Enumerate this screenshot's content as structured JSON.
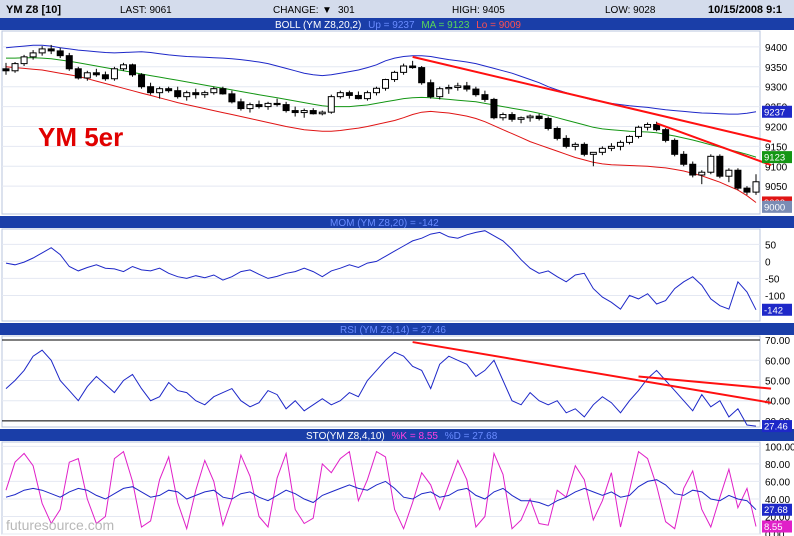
{
  "header": {
    "symbol": "YM Z8 [10]",
    "last_label": "LAST: 9061",
    "change_label": "CHANGE:",
    "change_arrow": "▼",
    "change_value": "301",
    "high_label": "HIGH: 9405",
    "low_label": "LOW: 9028",
    "datetime": "10/15/2008 9:1"
  },
  "annotation": {
    "text": "YM 5er"
  },
  "watermark": "futuresource.com",
  "colors": {
    "header_bg": "#d4dcec",
    "panel_bar": "#1a3ea8",
    "grid": "#b8c4dc",
    "price_line": "#000000",
    "boll_upper": "#1e28c8",
    "boll_mid": "#149614",
    "boll_lower": "#e01414",
    "osc_line": "#1e28c8",
    "stoch_k": "#e020c8",
    "trendline": "#ff1010",
    "badge_blue": "#1e28c8",
    "badge_green": "#149614",
    "badge_red": "#e01414",
    "badge_grey": "#7a8cb4"
  },
  "chart_data": [
    {
      "type": "candlestick",
      "title": "BOLL (YM Z8,20,2)",
      "legend": [
        {
          "name": "Up = 9237",
          "color": "#1e28c8"
        },
        {
          "name": "MA = 9123",
          "color": "#149614"
        },
        {
          "name": "Lo = 9009",
          "color": "#e01414"
        }
      ],
      "ylim": [
        8980,
        9440
      ],
      "yticks": [
        9400,
        9350,
        9300,
        9250,
        9200,
        9150,
        9100,
        9050
      ],
      "badges": [
        {
          "label": "9237",
          "value": 9237,
          "color": "#1e28c8"
        },
        {
          "label": "9123",
          "value": 9123,
          "color": "#149614"
        },
        {
          "label": "9009",
          "value": 9009,
          "color": "#e01414"
        },
        {
          "label": "9000",
          "value": 8998,
          "color": "#7a8cb4"
        }
      ],
      "candles": [
        [
          9345,
          9360,
          9330,
          9340
        ],
        [
          9340,
          9362,
          9335,
          9358
        ],
        [
          9358,
          9380,
          9352,
          9375
        ],
        [
          9375,
          9392,
          9368,
          9385
        ],
        [
          9385,
          9402,
          9378,
          9395
        ],
        [
          9395,
          9405,
          9382,
          9390
        ],
        [
          9390,
          9398,
          9372,
          9378
        ],
        [
          9378,
          9385,
          9340,
          9345
        ],
        [
          9345,
          9350,
          9318,
          9322
        ],
        [
          9322,
          9340,
          9315,
          9335
        ],
        [
          9335,
          9345,
          9325,
          9330
        ],
        [
          9330,
          9338,
          9315,
          9320
        ],
        [
          9320,
          9350,
          9315,
          9345
        ],
        [
          9345,
          9360,
          9340,
          9355
        ],
        [
          9355,
          9358,
          9325,
          9330
        ],
        [
          9330,
          9334,
          9295,
          9300
        ],
        [
          9300,
          9310,
          9280,
          9285
        ],
        [
          9285,
          9300,
          9270,
          9295
        ],
        [
          9295,
          9300,
          9285,
          9290
        ],
        [
          9290,
          9300,
          9270,
          9275
        ],
        [
          9275,
          9290,
          9265,
          9285
        ],
        [
          9285,
          9295,
          9270,
          9280
        ],
        [
          9280,
          9290,
          9272,
          9285
        ],
        [
          9285,
          9300,
          9280,
          9295
        ],
        [
          9295,
          9300,
          9280,
          9282
        ],
        [
          9282,
          9290,
          9258,
          9262
        ],
        [
          9262,
          9270,
          9240,
          9245
        ],
        [
          9245,
          9260,
          9235,
          9255
        ],
        [
          9255,
          9265,
          9245,
          9250
        ],
        [
          9250,
          9262,
          9242,
          9258
        ],
        [
          9258,
          9270,
          9250,
          9255
        ],
        [
          9255,
          9262,
          9235,
          9240
        ],
        [
          9240,
          9250,
          9225,
          9235
        ],
        [
          9235,
          9245,
          9222,
          9240
        ],
        [
          9240,
          9246,
          9230,
          9232
        ],
        [
          9232,
          9240,
          9228,
          9236
        ],
        [
          9236,
          9280,
          9232,
          9275
        ],
        [
          9275,
          9290,
          9270,
          9285
        ],
        [
          9285,
          9290,
          9270,
          9278
        ],
        [
          9278,
          9288,
          9268,
          9270
        ],
        [
          9270,
          9290,
          9265,
          9285
        ],
        [
          9285,
          9300,
          9278,
          9296
        ],
        [
          9296,
          9320,
          9290,
          9318
        ],
        [
          9318,
          9340,
          9312,
          9336
        ],
        [
          9336,
          9358,
          9330,
          9352
        ],
        [
          9352,
          9365,
          9345,
          9348
        ],
        [
          9348,
          9352,
          9305,
          9310
        ],
        [
          9310,
          9318,
          9270,
          9275
        ],
        [
          9275,
          9300,
          9268,
          9295
        ],
        [
          9295,
          9305,
          9282,
          9298
        ],
        [
          9298,
          9310,
          9290,
          9302
        ],
        [
          9302,
          9312,
          9288,
          9294
        ],
        [
          9294,
          9300,
          9275,
          9280
        ],
        [
          9280,
          9290,
          9262,
          9268
        ],
        [
          9268,
          9272,
          9218,
          9222
        ],
        [
          9222,
          9235,
          9215,
          9230
        ],
        [
          9230,
          9236,
          9212,
          9218
        ],
        [
          9218,
          9225,
          9208,
          9222
        ],
        [
          9222,
          9230,
          9212,
          9226
        ],
        [
          9226,
          9232,
          9215,
          9220
        ],
        [
          9220,
          9225,
          9190,
          9195
        ],
        [
          9195,
          9200,
          9165,
          9170
        ],
        [
          9170,
          9178,
          9145,
          9150
        ],
        [
          9150,
          9160,
          9140,
          9155
        ],
        [
          9155,
          9160,
          9125,
          9130
        ],
        [
          9130,
          9135,
          9100,
          9135
        ],
        [
          9135,
          9150,
          9128,
          9145
        ],
        [
          9145,
          9158,
          9138,
          9150
        ],
        [
          9150,
          9165,
          9140,
          9160
        ],
        [
          9160,
          9178,
          9155,
          9175
        ],
        [
          9175,
          9202,
          9170,
          9198
        ],
        [
          9198,
          9210,
          9190,
          9205
        ],
        [
          9205,
          9212,
          9188,
          9192
        ],
        [
          9192,
          9196,
          9160,
          9165
        ],
        [
          9165,
          9170,
          9125,
          9130
        ],
        [
          9130,
          9138,
          9100,
          9105
        ],
        [
          9105,
          9112,
          9072,
          9078
        ],
        [
          9078,
          9090,
          9055,
          9085
        ],
        [
          9085,
          9130,
          9080,
          9125
        ],
        [
          9125,
          9130,
          9070,
          9075
        ],
        [
          9075,
          9095,
          9060,
          9090
        ],
        [
          9090,
          9095,
          9040,
          9045
        ],
        [
          9045,
          9050,
          9028,
          9035
        ],
        [
          9035,
          9080,
          9028,
          9061
        ]
      ],
      "upper_band": [
        9398,
        9400,
        9402,
        9404,
        9404,
        9402,
        9398,
        9395,
        9392,
        9390,
        9388,
        9386,
        9385,
        9386,
        9387,
        9388,
        9386,
        9383,
        9380,
        9378,
        9376,
        9375,
        9374,
        9373,
        9372,
        9370,
        9368,
        9365,
        9362,
        9358,
        9352,
        9346,
        9340,
        9334,
        9330,
        9328,
        9330,
        9334,
        9338,
        9342,
        9348,
        9355,
        9365,
        9372,
        9376,
        9378,
        9378,
        9376,
        9372,
        9368,
        9365,
        9362,
        9358,
        9352,
        9346,
        9340,
        9334,
        9326,
        9318,
        9310,
        9300,
        9292,
        9285,
        9278,
        9272,
        9266,
        9262,
        9258,
        9255,
        9252,
        9250,
        9248,
        9245,
        9242,
        9240,
        9238,
        9236,
        9234,
        9233,
        9232,
        9231,
        9231,
        9233,
        9237
      ],
      "mid_band": [
        9372,
        9372,
        9373,
        9373,
        9372,
        9370,
        9367,
        9364,
        9360,
        9356,
        9352,
        9348,
        9344,
        9340,
        9336,
        9332,
        9328,
        9324,
        9320,
        9316,
        9312,
        9308,
        9304,
        9300,
        9296,
        9292,
        9288,
        9284,
        9280,
        9276,
        9272,
        9268,
        9264,
        9260,
        9256,
        9252,
        9250,
        9250,
        9250,
        9252,
        9254,
        9258,
        9262,
        9266,
        9270,
        9272,
        9273,
        9272,
        9270,
        9268,
        9266,
        9264,
        9262,
        9258,
        9254,
        9250,
        9246,
        9242,
        9238,
        9233,
        9228,
        9222,
        9216,
        9210,
        9204,
        9198,
        9194,
        9192,
        9190,
        9188,
        9187,
        9186,
        9184,
        9180,
        9176,
        9171,
        9166,
        9160,
        9154,
        9148,
        9142,
        9136,
        9130,
        9123
      ],
      "lower_band": [
        9350,
        9348,
        9346,
        9344,
        9342,
        9338,
        9334,
        9330,
        9326,
        9320,
        9314,
        9308,
        9302,
        9296,
        9290,
        9284,
        9278,
        9272,
        9266,
        9260,
        9255,
        9250,
        9245,
        9240,
        9235,
        9230,
        9225,
        9220,
        9215,
        9210,
        9205,
        9200,
        9196,
        9192,
        9190,
        9188,
        9188,
        9190,
        9193,
        9196,
        9200,
        9205,
        9210,
        9215,
        9222,
        9230,
        9236,
        9238,
        9236,
        9234,
        9230,
        9226,
        9220,
        9212,
        9202,
        9192,
        9182,
        9172,
        9162,
        9154,
        9146,
        9138,
        9130,
        9122,
        9116,
        9110,
        9106,
        9104,
        9103,
        9102,
        9101,
        9100,
        9098,
        9096,
        9092,
        9088,
        9082,
        9076,
        9068,
        9060,
        9050,
        9040,
        9026,
        9009
      ],
      "trendlines": [
        {
          "from": [
            45,
            9375
          ],
          "to": [
            84,
            9162
          ]
        },
        {
          "from": [
            72,
            9208
          ],
          "to": [
            84,
            9103
          ]
        }
      ]
    },
    {
      "type": "line",
      "title": "MOM (YM Z8,20) = -142",
      "ylim": [
        -175,
        95
      ],
      "yticks": [
        50,
        0,
        -50,
        -100
      ],
      "badges": [
        {
          "label": "-142",
          "value": -142,
          "color": "#1e28c8"
        }
      ],
      "values": [
        -5,
        -10,
        -2,
        10,
        25,
        40,
        20,
        -15,
        -28,
        -18,
        -10,
        -20,
        -22,
        -30,
        -15,
        -25,
        -28,
        -20,
        -35,
        -45,
        -50,
        -42,
        -48,
        -40,
        -55,
        -45,
        -30,
        -25,
        -38,
        -50,
        -44,
        -35,
        -30,
        -20,
        -30,
        -45,
        -28,
        -20,
        -10,
        -18,
        -5,
        0,
        15,
        30,
        45,
        60,
        68,
        80,
        85,
        72,
        68,
        78,
        85,
        90,
        75,
        60,
        35,
        5,
        -20,
        -35,
        -28,
        -45,
        -60,
        -40,
        -35,
        -80,
        -105,
        -120,
        -140,
        -100,
        -110,
        -95,
        -125,
        -115,
        -80,
        -60,
        -45,
        -70,
        -110,
        -130,
        -140,
        -60,
        -90,
        -142
      ]
    },
    {
      "type": "line",
      "title": "RSI (YM Z8,14) = 27.46",
      "ylim": [
        27,
        72
      ],
      "yticks": [
        70,
        60,
        50,
        40,
        30
      ],
      "hlines": [
        70,
        30
      ],
      "badges": [
        {
          "label": "27.46",
          "value": 27.46,
          "color": "#1e28c8"
        }
      ],
      "values": [
        46,
        50,
        55,
        62,
        65,
        60,
        50,
        45,
        40,
        47,
        52,
        48,
        44,
        50,
        53,
        46,
        40,
        42,
        49,
        45,
        44,
        40,
        38,
        42,
        44,
        46,
        40,
        37,
        39,
        45,
        43,
        36,
        40,
        35,
        38,
        41,
        38,
        40,
        44,
        42,
        50,
        55,
        60,
        64,
        62,
        57,
        55,
        46,
        58,
        62,
        60,
        58,
        52,
        55,
        60,
        50,
        40,
        38,
        44,
        40,
        38,
        40,
        34,
        36,
        32,
        38,
        42,
        39,
        34,
        40,
        45,
        51,
        55,
        50,
        45,
        40,
        35,
        43,
        37,
        40,
        32,
        36,
        28,
        27.46
      ],
      "trendlines": [
        {
          "from": [
            45,
            69
          ],
          "to": [
            84,
            39
          ]
        },
        {
          "from": [
            70,
            52
          ],
          "to": [
            84,
            46
          ]
        }
      ]
    },
    {
      "type": "line",
      "title": "STO(YM Z8,4,10)",
      "legend": [
        {
          "name": "%K = 8.55",
          "color": "#e020c8"
        },
        {
          "name": "%D = 27.68",
          "color": "#1e28c8"
        }
      ],
      "ylim": [
        0,
        105
      ],
      "yticks": [
        100,
        80,
        60,
        40,
        20,
        0
      ],
      "badges": [
        {
          "label": "27.68",
          "value": 27.68,
          "color": "#1e28c8"
        },
        {
          "label": "8.55",
          "value": 8.55,
          "color": "#e020c8"
        }
      ],
      "k_values": [
        50,
        82,
        92,
        78,
        35,
        12,
        28,
        82,
        86,
        40,
        12,
        20,
        86,
        94,
        60,
        8,
        15,
        62,
        88,
        36,
        6,
        50,
        84,
        60,
        10,
        40,
        90,
        66,
        20,
        8,
        64,
        92,
        28,
        12,
        18,
        80,
        70,
        86,
        94,
        38,
        62,
        94,
        88,
        28,
        6,
        36,
        70,
        56,
        28,
        56,
        84,
        62,
        8,
        20,
        92,
        68,
        6,
        16,
        40,
        12,
        10,
        50,
        42,
        78,
        62,
        16,
        38,
        70,
        8,
        50,
        94,
        86,
        55,
        14,
        6,
        52,
        72,
        28,
        8,
        42,
        74,
        30,
        52,
        8.55
      ],
      "d_values": [
        42,
        45,
        50,
        52,
        50,
        46,
        42,
        48,
        52,
        50,
        44,
        40,
        46,
        52,
        54,
        48,
        42,
        44,
        50,
        48,
        40,
        44,
        48,
        50,
        42,
        40,
        46,
        48,
        42,
        38,
        44,
        50,
        46,
        40,
        36,
        44,
        48,
        52,
        56,
        52,
        50,
        56,
        60,
        52,
        42,
        40,
        46,
        48,
        42,
        44,
        50,
        52,
        44,
        40,
        48,
        52,
        44,
        38,
        38,
        36,
        32,
        38,
        42,
        48,
        52,
        48,
        44,
        48,
        42,
        44,
        54,
        60,
        62,
        56,
        46,
        44,
        50,
        48,
        40,
        38,
        44,
        40,
        38,
        27.68
      ]
    }
  ]
}
